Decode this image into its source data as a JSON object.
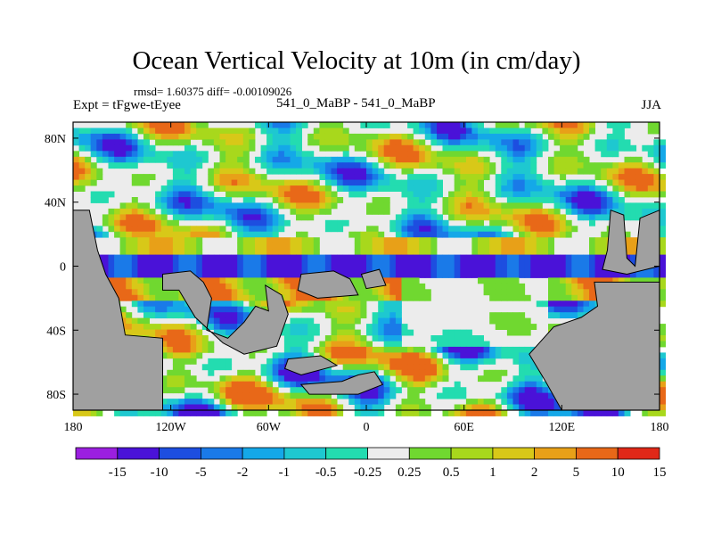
{
  "chart_data": {
    "type": "heatmap",
    "title": "Ocean Vertical Velocity at 10m (in cm/day)",
    "stats_text": "rmsd= 1.60375  diff= -0.00109026",
    "left_label": "Expt = tFgwe-tEyee",
    "center_label": "541_0_MaBP - 541_0_MaBP",
    "right_label": "JJA",
    "xlim": [
      -180,
      180
    ],
    "ylim": [
      -90,
      90
    ],
    "x_ticks": [
      {
        "value": -180,
        "label": "180"
      },
      {
        "value": -120,
        "label": "120W"
      },
      {
        "value": -60,
        "label": "60W"
      },
      {
        "value": 0,
        "label": "0"
      },
      {
        "value": 60,
        "label": "60E"
      },
      {
        "value": 120,
        "label": "120E"
      },
      {
        "value": 180,
        "label": "180"
      }
    ],
    "y_ticks": [
      {
        "value": 80,
        "label": "80N"
      },
      {
        "value": 40,
        "label": "40N"
      },
      {
        "value": 0,
        "label": "0"
      },
      {
        "value": -40,
        "label": "40S"
      },
      {
        "value": -80,
        "label": "80S"
      }
    ],
    "colorbar": {
      "levels": [
        "-15",
        "-10",
        "-5",
        "-2",
        "-1",
        "-0.5",
        "-0.25",
        "0.25",
        "0.5",
        "1",
        "2",
        "5",
        "10",
        "15"
      ],
      "colors": [
        "#9b1fe0",
        "#4a12d8",
        "#1d4ee0",
        "#1a7ae8",
        "#14a8e8",
        "#1ec8d0",
        "#23dcb0",
        "#ececec",
        "#70d830",
        "#a8d81c",
        "#d8c818",
        "#e8a018",
        "#e86818",
        "#e02818"
      ]
    },
    "land_color": "#a0a0a0",
    "ocean_color": "#ececec",
    "land_polygons": [
      {
        "name": "land-americas-west",
        "points": [
          [
            -180,
            90
          ],
          [
            -180,
            -90
          ],
          [
            -125,
            -90
          ],
          [
            -125,
            -45
          ],
          [
            -148,
            -43
          ],
          [
            -152,
            -20
          ],
          [
            -160,
            -5
          ],
          [
            -165,
            10
          ],
          [
            -168,
            25
          ],
          [
            -170,
            35
          ],
          [
            -180,
            35
          ]
        ]
      },
      {
        "name": "land-central-block",
        "points": [
          [
            -125,
            -5
          ],
          [
            -108,
            -3
          ],
          [
            -100,
            -10
          ],
          [
            -95,
            -20
          ],
          [
            -98,
            -40
          ],
          [
            -85,
            -45
          ],
          [
            -75,
            -35
          ],
          [
            -68,
            -25
          ],
          [
            -60,
            -28
          ],
          [
            -62,
            -12
          ],
          [
            -52,
            -18
          ],
          [
            -48,
            -30
          ],
          [
            -55,
            -50
          ],
          [
            -75,
            -55
          ],
          [
            -88,
            -48
          ],
          [
            -105,
            -32
          ],
          [
            -115,
            -15
          ],
          [
            -125,
            -15
          ]
        ]
      },
      {
        "name": "land-island-west",
        "points": [
          [
            -40,
            -5
          ],
          [
            -20,
            -3
          ],
          [
            -10,
            -8
          ],
          [
            -5,
            -18
          ],
          [
            -30,
            -20
          ],
          [
            -42,
            -15
          ]
        ]
      },
      {
        "name": "land-island-east",
        "points": [
          [
            -3,
            -5
          ],
          [
            8,
            -2
          ],
          [
            12,
            -12
          ],
          [
            0,
            -14
          ]
        ]
      },
      {
        "name": "land-south-small",
        "points": [
          [
            -48,
            -58
          ],
          [
            -28,
            -56
          ],
          [
            -18,
            -62
          ],
          [
            -40,
            -68
          ],
          [
            -50,
            -64
          ]
        ]
      },
      {
        "name": "land-south-long",
        "points": [
          [
            -40,
            -74
          ],
          [
            -15,
            -72
          ],
          [
            -5,
            -68
          ],
          [
            5,
            -66
          ],
          [
            10,
            -74
          ],
          [
            -5,
            -80
          ],
          [
            -35,
            -80
          ]
        ]
      },
      {
        "name": "land-east-block",
        "points": [
          [
            140,
            -10
          ],
          [
            160,
            -10
          ],
          [
            180,
            -10
          ],
          [
            180,
            -90
          ],
          [
            120,
            -90
          ],
          [
            110,
            -72
          ],
          [
            100,
            -55
          ],
          [
            115,
            -38
          ],
          [
            132,
            -32
          ],
          [
            142,
            -25
          ]
        ]
      },
      {
        "name": "land-east-peninsula",
        "points": [
          [
            150,
            35
          ],
          [
            158,
            32
          ],
          [
            160,
            5
          ],
          [
            165,
            0
          ],
          [
            168,
            30
          ],
          [
            180,
            35
          ],
          [
            180,
            0
          ],
          [
            160,
            -5
          ],
          [
            145,
            -2
          ],
          [
            148,
            10
          ]
        ]
      }
    ]
  }
}
